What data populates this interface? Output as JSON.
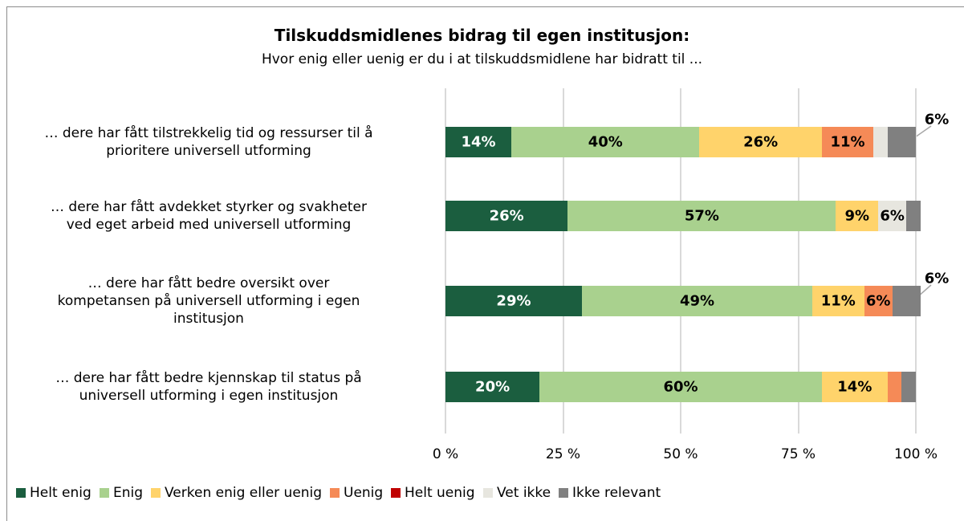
{
  "chart_data": {
    "type": "stacked-bar-horizontal",
    "title": "Tilskuddsmidlenes bidrag til egen institusjon:",
    "subtitle": "Hvor enig eller uenig er du i at tilskuddsmidlene har bidratt til ...",
    "categories": [
      "… dere har fått tilstrekkelig tid og ressurser til å\nprioritere universell utforming",
      "… dere har fått avdekket styrker og svakheter\nved eget arbeid med universell utforming",
      "… dere har fått bedre oversikt over\nkompetansen på universell utforming i egen\ninstitusjon",
      "… dere har fått bedre kjennskap til status på\nuniversell utforming i egen institusjon"
    ],
    "series": [
      {
        "name": "Helt enig",
        "color": "#1b5e3f",
        "values": [
          14,
          26,
          29,
          20
        ],
        "value_labels": [
          "14%",
          "26%",
          "29%",
          "20%"
        ]
      },
      {
        "name": "Enig",
        "color": "#a9d18e",
        "values": [
          40,
          57,
          49,
          60
        ],
        "value_labels": [
          "40%",
          "57%",
          "49%",
          "60%"
        ]
      },
      {
        "name": "Verken enig eller uenig",
        "color": "#ffd36b",
        "values": [
          26,
          9,
          11,
          14
        ],
        "value_labels": [
          "26%",
          "9%",
          "11%",
          "14%"
        ]
      },
      {
        "name": "Uenig",
        "color": "#f58a57",
        "values": [
          11,
          0,
          6,
          3
        ],
        "value_labels": [
          "11%",
          null,
          "6%",
          null
        ]
      },
      {
        "name": "Helt uenig",
        "color": "#c00000",
        "values": [
          0,
          0,
          0,
          0
        ],
        "value_labels": [
          null,
          null,
          null,
          null
        ]
      },
      {
        "name": "Vet ikke",
        "color": "#e7e6df",
        "values": [
          3,
          6,
          0,
          0
        ],
        "value_labels": [
          null,
          "6%",
          null,
          null
        ]
      },
      {
        "name": "Ikke relevant",
        "color": "#808080",
        "values": [
          6,
          3,
          6,
          3
        ],
        "value_labels": [
          "6%",
          null,
          "6%",
          null
        ]
      }
    ],
    "xlim": [
      0,
      100
    ],
    "xticks": [
      {
        "value": 0,
        "label": "0 %"
      },
      {
        "value": 25,
        "label": "25 %"
      },
      {
        "value": 50,
        "label": "50 %"
      },
      {
        "value": 75,
        "label": "75 %"
      },
      {
        "value": 100,
        "label": "100 %"
      }
    ],
    "grid": true,
    "legend": "bottom"
  }
}
